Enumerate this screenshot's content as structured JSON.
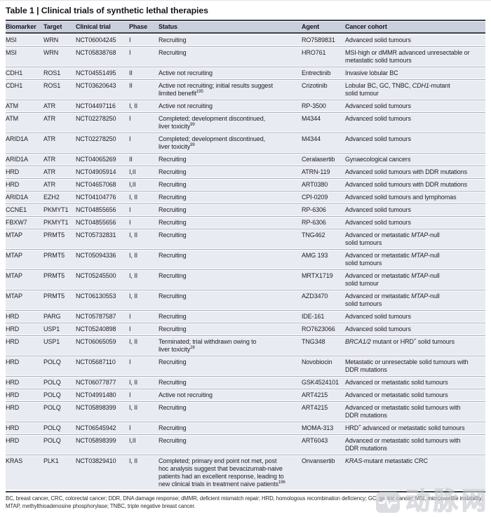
{
  "table": {
    "title": "Table 1 | Clinical trials of synthetic lethal therapies",
    "columns": [
      "Biomarker",
      "Target",
      "Clinical trial",
      "Phase",
      "Status",
      "Agent",
      "Cancer cohort"
    ],
    "rows": [
      {
        "biomarker": "MSI",
        "target": "WRN",
        "trial": "NCT06004245",
        "phase": "I",
        "status": "Recruiting",
        "agent": "RO7589831",
        "cohort": "Advanced solid tumours"
      },
      {
        "biomarker": "MSI",
        "target": "WRN",
        "trial": "NCT05838768",
        "phase": "I",
        "status": "Recruiting",
        "agent": "HRO761",
        "cohort": "MSI-high or dMMR advanced unresectable or<br>metastatic solid tumours"
      },
      {
        "biomarker": "CDH1",
        "target": "ROS1",
        "trial": "NCT04551495",
        "phase": "II",
        "status": "Active not recruiting",
        "agent": "Entrectinib",
        "cohort": "Invasive lobular BC"
      },
      {
        "biomarker": "CDH1",
        "target": "ROS1",
        "trial": "NCT03620643",
        "phase": "II",
        "status": "Active not recruiting; initial results suggest<br>limited benefit<sup>195</sup>",
        "agent": "Crizotinib",
        "cohort": "Lobular BC, GC, TNBC, <i>CDH1</i>-mutant<br>solid tumour"
      },
      {
        "biomarker": "ATM",
        "target": "ATR",
        "trial": "NCT04497116",
        "phase": "I, II",
        "status": "Active not recruiting",
        "agent": "RP-3500",
        "cohort": "Advanced solid tumours"
      },
      {
        "biomarker": "ATM",
        "target": "ATR",
        "trial": "NCT02278250",
        "phase": "I",
        "status": "Completed; development discontinued,<br>liver toxicity<sup>99</sup>",
        "agent": "M4344",
        "cohort": "Advanced solid tumours"
      },
      {
        "biomarker": "ARID1A",
        "target": "ATR",
        "trial": "NCT02278250",
        "phase": "I",
        "status": "Completed; development discontinued,<br>liver toxicity<sup>99</sup>",
        "agent": "M4344",
        "cohort": "Advanced solid tumours"
      },
      {
        "biomarker": "ARID1A",
        "target": "ATR",
        "trial": "NCT04065269",
        "phase": "II",
        "status": "Recruiting",
        "agent": "Ceralasertib",
        "cohort": "Gynaecological cancers"
      },
      {
        "biomarker": "HRD",
        "target": "ATR",
        "trial": "NCT04905914",
        "phase": "I,II",
        "status": "Recruiting",
        "agent": "ATRN-119",
        "cohort": "Advanced solid tumours with DDR mutations"
      },
      {
        "biomarker": "HRD",
        "target": "ATR",
        "trial": "NCT04657068",
        "phase": "I,II",
        "status": "Recruiting",
        "agent": "ART0380",
        "cohort": "Advanced solid tumours with DDR mutations"
      },
      {
        "biomarker": "ARID1A",
        "target": "EZH2",
        "trial": "NCT04104776",
        "phase": "I, II",
        "status": "Recruiting",
        "agent": "CPI-0209",
        "cohort": "Advanced solid tumours and lymphomas"
      },
      {
        "biomarker": "CCNE1",
        "target": "PKMYT1",
        "trial": "NCT04855656",
        "phase": "I",
        "status": "Recruiting",
        "agent": "RP-6306",
        "cohort": "Advanced solid tumours"
      },
      {
        "biomarker": "FBXW7",
        "target": "PKMYT1",
        "trial": "NCT04855656",
        "phase": "I",
        "status": "Recruiting",
        "agent": "RP-6306",
        "cohort": "Advanced solid tumours"
      },
      {
        "biomarker": "MTAP",
        "target": "PRMT5",
        "trial": "NCT05732831",
        "phase": "I, II",
        "status": "Recruiting",
        "agent": "TNG462",
        "cohort": "Advanced or metastatic <i>MTAP</i>-null<br>solid tumours"
      },
      {
        "biomarker": "MTAP",
        "target": "PRMT5",
        "trial": "NCT05094336",
        "phase": "I, II",
        "status": "Recruiting",
        "agent": "AMG 193",
        "cohort": "Advanced or metastatic <i>MTAP</i>-null<br>solid tumours"
      },
      {
        "biomarker": "MTAP",
        "target": "PRMT5",
        "trial": "NCT05245500",
        "phase": "I, II",
        "status": "Recruiting",
        "agent": "MRTX1719",
        "cohort": "Advanced or metastatic <i>MTAP</i>-null<br>solid tumour"
      },
      {
        "biomarker": "MTAP",
        "target": "PRMT5",
        "trial": "NCT06130553",
        "phase": "I, II",
        "status": "Recruiting",
        "agent": "AZD3470",
        "cohort": "Advanced or metastatic <i>MTAP</i>-null<br>solid tumours"
      },
      {
        "biomarker": "HRD",
        "target": "PARG",
        "trial": "NCT05787587",
        "phase": "I",
        "status": "Recruiting",
        "agent": "IDE-161",
        "cohort": "Advanced solid tumours"
      },
      {
        "biomarker": "HRD",
        "target": "USP1",
        "trial": "NCT05240898",
        "phase": "I",
        "status": "Recruiting",
        "agent": "RO7623066",
        "cohort": "Advanced solid tumours"
      },
      {
        "biomarker": "HRD",
        "target": "USP1",
        "trial": "NCT06065059",
        "phase": "I, II",
        "status": "Terminated; trial withdrawn owing to<br>liver toxicity<sup>28</sup>",
        "agent": "TNG348",
        "cohort": "<i>BRCA1/2</i> mutant or HRD<sup>+</sup> solid tumours"
      },
      {
        "biomarker": "HRD",
        "target": "POLQ",
        "trial": "NCT05687110",
        "phase": "I",
        "status": "Recruiting",
        "agent": "Novobiocin",
        "cohort": "Metastatic or unresectable solid tumours with<br>DDR mutations"
      },
      {
        "biomarker": "HRD",
        "target": "POLQ",
        "trial": "NCT06077877",
        "phase": "I, II",
        "status": "Recruiting",
        "agent": "GSK4524101",
        "cohort": "Advanced or metastatic solid tumours"
      },
      {
        "biomarker": "HRD",
        "target": "POLQ",
        "trial": "NCT04991480",
        "phase": "I",
        "status": "Active not recruiting",
        "agent": "ART4215",
        "cohort": "Advanced or metastatic solid tumours"
      },
      {
        "biomarker": "HRD",
        "target": "POLQ",
        "trial": "NCT05898399",
        "phase": "I, II",
        "status": "Recruiting",
        "agent": "ART4215",
        "cohort": "Advanced or metastatic solid tumours with<br>DDR mutations"
      },
      {
        "biomarker": "HRD",
        "target": "POLQ",
        "trial": "NCT06545942",
        "phase": "I",
        "status": "Recruiting",
        "agent": "MOMA-313",
        "cohort": "HRD<sup>+</sup> advanced or metastatic solid tumours"
      },
      {
        "biomarker": "HRD",
        "target": "POLQ",
        "trial": "NCT05898399",
        "phase": "I,II",
        "status": "Recruiting",
        "agent": "ART6043",
        "cohort": "Advanced or metastatic solid tumours with<br>DDR mutations"
      },
      {
        "biomarker": "KRAS",
        "target": "PLK1",
        "trial": "NCT03829410",
        "phase": "I, II",
        "status": "Completed; primary end point not met, post<br>hoc analysis suggest that bevacizumab-naive<br>patients had an excellent response, leading to<br>new clinical trials in treatment naive patients<sup>196</sup>",
        "agent": "Onvansertib",
        "cohort": "<i>KRAS</i>-mutant metastatic CRC"
      }
    ],
    "footnote": "BC, breast cancer, CRC, colorectal cancer; DDR, DNA damage response; dMMR, deficient mismatch repair; HRD, homologous recombination deficiency; GC, gastric cancer; MSI, microsatellite instability; MTAP, methylthioadenosine phosphorylase; TNBC, triple negative breast cancer."
  },
  "watermark": {
    "text": "动脉网",
    "logo": "vcbeat-logo"
  },
  "colors": {
    "header_bg": "#cacfdc",
    "row_bg": "#e9ebf2",
    "rule_dark": "#3e4049",
    "separator_line": "#a6abb7",
    "watermark_grey": "#c6c9d0"
  }
}
